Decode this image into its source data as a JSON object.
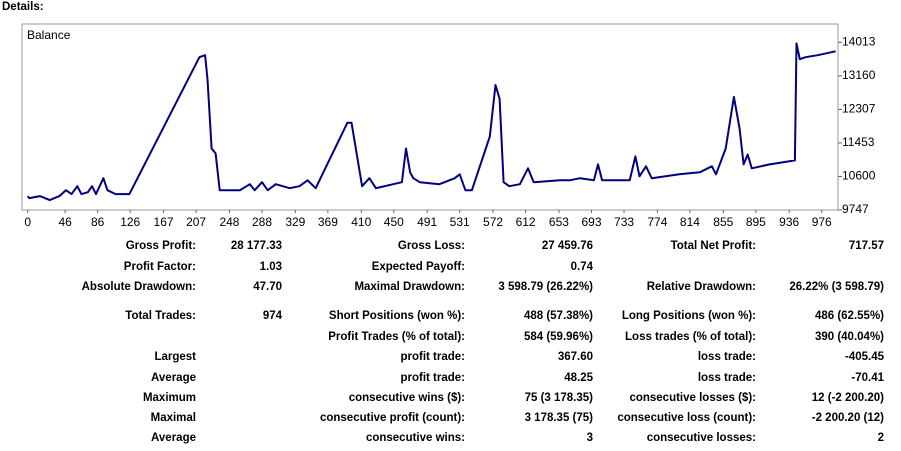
{
  "header": {
    "title": "Details:"
  },
  "chart_data": {
    "type": "line",
    "x": [
      0,
      2,
      15,
      27,
      39,
      47,
      54,
      61,
      66,
      74,
      79,
      84,
      93,
      98,
      108,
      125,
      211,
      218,
      221,
      226,
      231,
      236,
      261,
      273,
      279,
      288,
      295,
      305,
      322,
      334,
      344,
      354,
      393,
      398,
      411,
      420,
      428,
      460,
      465,
      470,
      474,
      482,
      506,
      525,
      531,
      538,
      546,
      568,
      575,
      580,
      585,
      592,
      605,
      615,
      622,
      654,
      666,
      679,
      696,
      701,
      706,
      740,
      747,
      752,
      760,
      767,
      801,
      826,
      841,
      846,
      858,
      868,
      875,
      880,
      885,
      890,
      912,
      943,
      945,
      949,
      956,
      971,
      993
    ],
    "series": [
      {
        "name": "Balance",
        "color": "#000080",
        "values": [
          10100,
          10050,
          10100,
          10000,
          10100,
          10252,
          10151,
          10353,
          10151,
          10201,
          10353,
          10151,
          10555,
          10252,
          10151,
          10151,
          13634,
          13685,
          13079,
          11312,
          11186,
          10252,
          10252,
          10403,
          10252,
          10454,
          10252,
          10403,
          10302,
          10353,
          10504,
          10302,
          11968,
          11968,
          10353,
          10555,
          10302,
          10454,
          11312,
          10706,
          10555,
          10454,
          10403,
          10555,
          10656,
          10252,
          10252,
          11615,
          12927,
          12574,
          10454,
          10353,
          10403,
          10807,
          10454,
          10504,
          10504,
          10555,
          10504,
          10908,
          10504,
          10504,
          11110,
          10605,
          10858,
          10555,
          10656,
          10706,
          10858,
          10656,
          11312,
          12624,
          11817,
          10908,
          11160,
          10807,
          10908,
          11009,
          13987,
          13584,
          13634,
          13685,
          13786
        ]
      }
    ],
    "xlim": [
      -7,
      996
    ],
    "xticks": [
      0,
      46,
      86,
      126,
      167,
      207,
      248,
      288,
      329,
      369,
      410,
      450,
      491,
      531,
      572,
      612,
      653,
      693,
      733,
      774,
      814,
      855,
      895,
      936,
      976
    ],
    "ylim": [
      9747,
      14480
    ],
    "yticks": [
      9747,
      10600,
      11453,
      12307,
      13160,
      14013
    ],
    "grid": false
  },
  "table": {
    "rows": [
      [
        "Gross Profit:",
        "28 177.33",
        "Gross Loss:",
        "27 459.76",
        "Total Net Profit:",
        "717.57"
      ],
      [
        "Profit Factor:",
        "1.03",
        "Expected Payoff:",
        "0.74",
        null,
        null
      ],
      [
        "Absolute Drawdown:",
        "47.70",
        "Maximal Drawdown:",
        "3 598.79 (26.22%)",
        "Relative Drawdown:",
        "26.22% (3 598.79)"
      ],
      [
        "Total Trades:",
        "974",
        "Short Positions (won %):",
        "488 (57.38%)",
        "Long Positions (won %):",
        "486 (62.55%)"
      ],
      [
        null,
        null,
        "Profit Trades (% of total):",
        "584 (59.96%)",
        "Loss trades (% of total):",
        "390 (40.04%)"
      ],
      [
        "Largest",
        null,
        "profit trade:",
        "367.60",
        "loss trade:",
        "-405.45"
      ],
      [
        "Average",
        null,
        "profit trade:",
        "48.25",
        "loss trade:",
        "-70.41"
      ],
      [
        "Maximum",
        null,
        "consecutive wins ($):",
        "75 (3 178.35)",
        "consecutive losses ($):",
        "12 (-2 200.20)"
      ],
      [
        "Maximal",
        null,
        "consecutive profit (count):",
        "3 178.35 (75)",
        "consecutive loss (count):",
        "-2 200.20 (12)"
      ],
      [
        "Average",
        null,
        "consecutive wins:",
        "3",
        "consecutive losses:",
        "2"
      ]
    ]
  }
}
